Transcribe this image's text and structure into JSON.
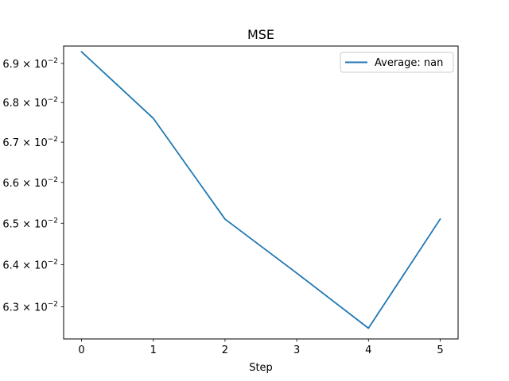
{
  "chart_data": {
    "type": "line",
    "title": "MSE",
    "xlabel": "Step",
    "ylabel": "",
    "y_scale": "log",
    "x": [
      0,
      1,
      2,
      3,
      4,
      5
    ],
    "xlim": [
      -0.25,
      5.25
    ],
    "ylim": [
      0.06225,
      0.06945
    ],
    "x_ticks": [
      "0",
      "1",
      "2",
      "3",
      "4",
      "5"
    ],
    "y_ticks": [
      {
        "value": 0.063,
        "mantissa": "6.3",
        "base": "10",
        "exp": "−2"
      },
      {
        "value": 0.064,
        "mantissa": "6.4",
        "base": "10",
        "exp": "−2"
      },
      {
        "value": 0.065,
        "mantissa": "6.5",
        "base": "10",
        "exp": "−2"
      },
      {
        "value": 0.066,
        "mantissa": "6.6",
        "base": "10",
        "exp": "−2"
      },
      {
        "value": 0.067,
        "mantissa": "6.7",
        "base": "10",
        "exp": "−2"
      },
      {
        "value": 0.068,
        "mantissa": "6.8",
        "base": "10",
        "exp": "−2"
      },
      {
        "value": 0.069,
        "mantissa": "6.9",
        "base": "10",
        "exp": "−2"
      }
    ],
    "grid": false,
    "legend": {
      "position": "top-right"
    },
    "series": [
      {
        "name": "Average: nan",
        "color": "#1f77b4",
        "values": [
          0.0693,
          0.0676,
          0.0651,
          0.0638,
          0.0625,
          0.0651
        ]
      }
    ]
  }
}
